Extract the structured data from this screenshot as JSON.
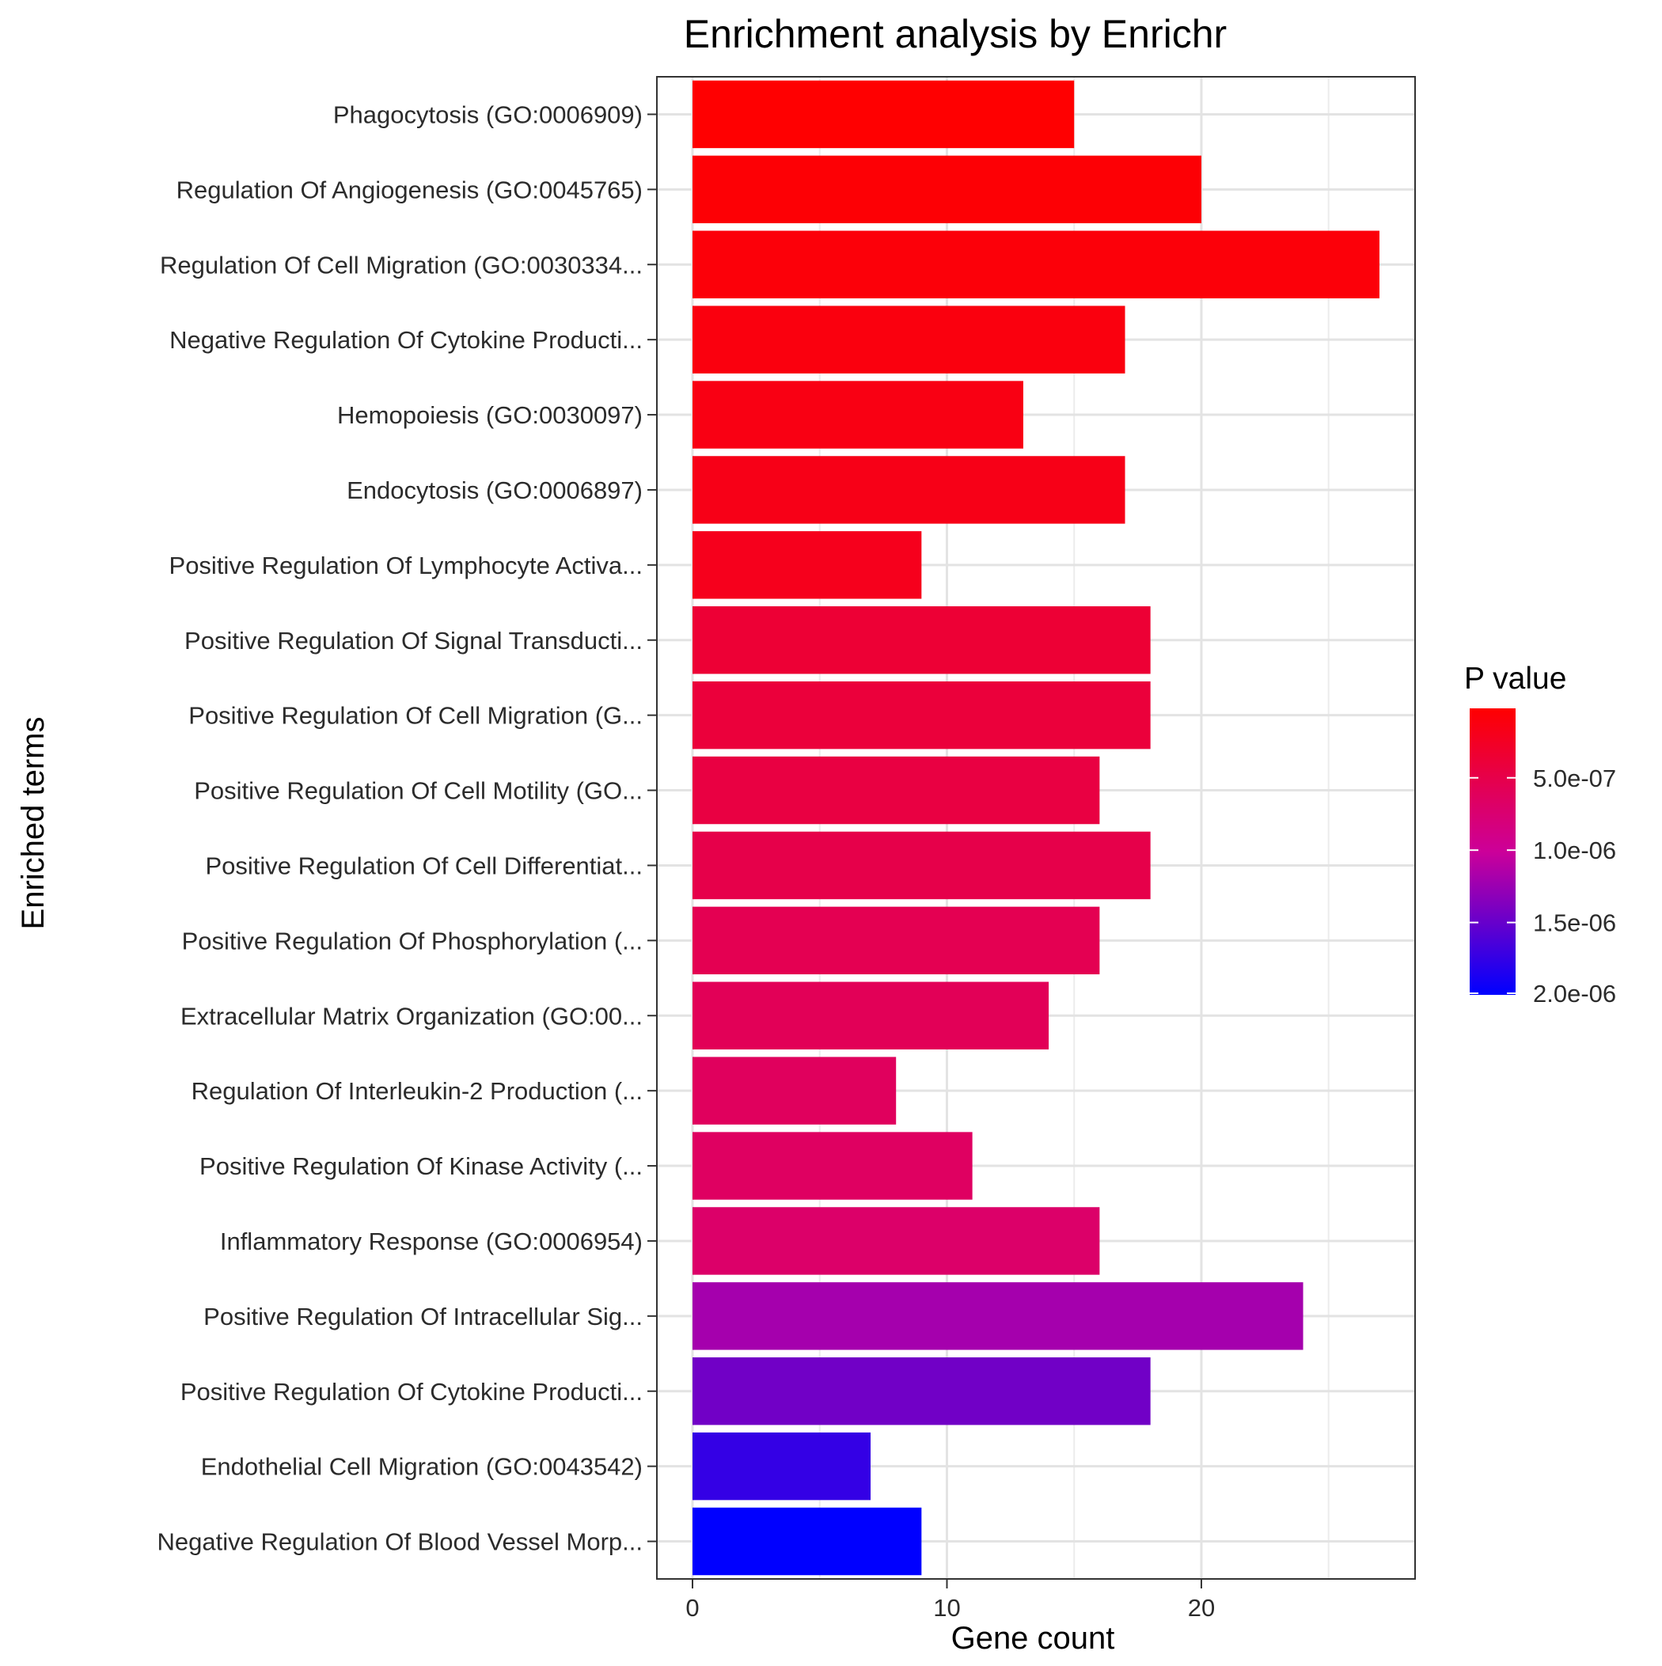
{
  "chart_data": {
    "type": "bar",
    "orientation": "horizontal",
    "title": "Enrichment analysis by Enrichr",
    "xlabel": "Gene count",
    "ylabel": "Enriched terms",
    "xlim": [
      -1.4,
      28.4
    ],
    "x_ticks": [
      0,
      10,
      20
    ],
    "grid": true,
    "legend": {
      "title": "P value",
      "placement": "right",
      "scale_min": 2e-08,
      "scale_max": 2e-06,
      "color_low": "#ff0000",
      "color_high": "#0000ff",
      "breaks": [
        {
          "value": 5e-07,
          "label": "5.0e-07"
        },
        {
          "value": 1e-06,
          "label": "1.0e-06"
        },
        {
          "value": 1.5e-06,
          "label": "1.5e-06"
        },
        {
          "value": 2e-06,
          "label": "2.0e-06"
        }
      ]
    },
    "categories": [
      "Phagocytosis (GO:0006909)",
      "Regulation Of Angiogenesis (GO:0045765)",
      "Regulation Of Cell Migration (GO:0030334...",
      "Negative Regulation Of Cytokine Producti...",
      "Hemopoiesis (GO:0030097)",
      "Endocytosis (GO:0006897)",
      "Positive Regulation Of Lymphocyte Activa...",
      "Positive Regulation Of Signal Transducti...",
      "Positive Regulation Of Cell Migration (G...",
      "Positive Regulation Of Cell Motility (GO...",
      "Positive Regulation Of Cell Differentiat...",
      "Positive Regulation Of Phosphorylation (...",
      "Extracellular Matrix Organization (GO:00...",
      "Regulation Of Interleukin-2 Production (...",
      "Positive Regulation Of Kinase Activity (...",
      "Inflammatory Response (GO:0006954)",
      "Positive Regulation Of Intracellular Sig...",
      "Positive Regulation Of Cytokine Producti...",
      "Endothelial Cell Migration (GO:0043542)",
      "Negative Regulation Of Blood Vessel Morp..."
    ],
    "values": [
      15,
      20,
      27,
      17,
      13,
      17,
      9,
      18,
      18,
      16,
      18,
      16,
      14,
      8,
      11,
      16,
      24,
      18,
      7,
      9
    ],
    "p_values": [
      2.5e-08,
      5e-08,
      8e-08,
      1.1e-07,
      1.4e-07,
      1.7e-07,
      2e-07,
      3.6e-07,
      4e-07,
      4.5e-07,
      5e-07,
      5.5e-07,
      5.8e-07,
      6.2e-07,
      6.5e-07,
      7e-07,
      1.2e-06,
      1.45e-06,
      1.75e-06,
      2e-06
    ]
  }
}
